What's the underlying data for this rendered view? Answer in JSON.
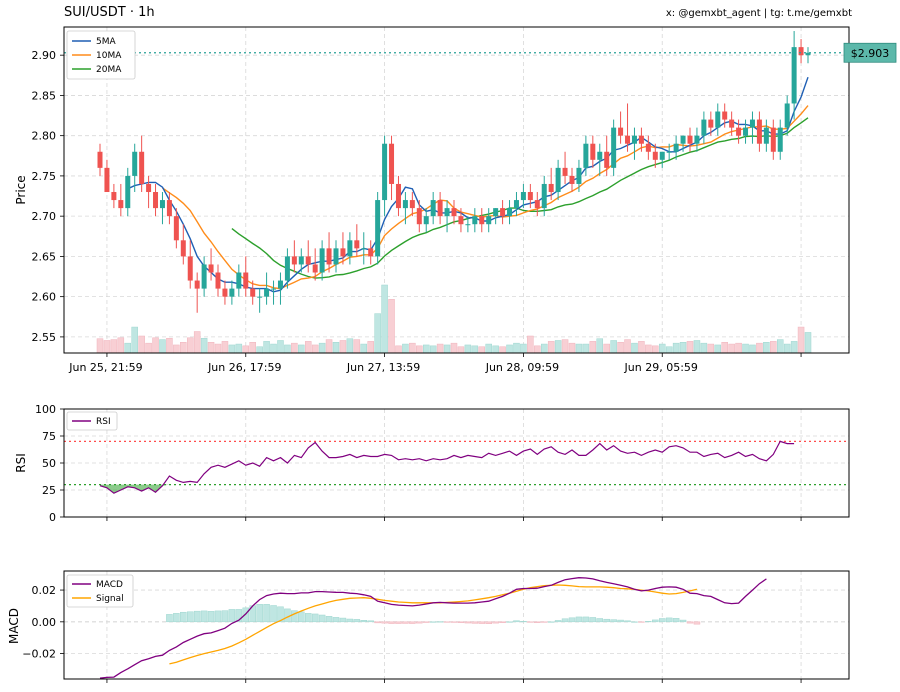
{
  "title": "SUI/USDT · 1h",
  "credit": "x: @gemxbt_agent | tg: t.me/gemxbt",
  "colors": {
    "up": "#26a69a",
    "down": "#ef5350",
    "vol_up": "#bfe6e2",
    "vol_down": "#f8cfd4",
    "ma5": "#1f5fb4",
    "ma10": "#ff8c1a",
    "ma20": "#2ca02c",
    "rsi": "#800080",
    "macd": "#800080",
    "signal": "#ffa500",
    "rsi_over": "#ff4d4d",
    "rsi_under": "#2ca02c",
    "price_line": "#2aa198",
    "price_tag_bg": "#5cb8aa"
  },
  "chart_data": [
    {
      "type": "candlestick",
      "ylabel": "Price",
      "ylim": [
        2.53,
        2.935
      ],
      "yticks": [
        2.55,
        2.6,
        2.65,
        2.7,
        2.75,
        2.8,
        2.85,
        2.9
      ],
      "ytick_labels": [
        "2.55",
        "2.60",
        "2.65",
        "2.70",
        "2.75",
        "2.80",
        "2.85",
        "2.90"
      ],
      "xtick_labels": [
        "Jun 25, 21:59",
        "Jun 26, 17:59",
        "Jun 27, 13:59",
        "Jun 28, 09:59",
        "Jun 29, 05:59",
        ""
      ],
      "xtick_index": [
        1,
        21,
        41,
        61,
        81,
        101
      ],
      "last_price": 2.903,
      "last_price_label": "$2.903",
      "legend": [
        "5MA",
        "10MA",
        "20MA"
      ],
      "ohlc": [
        [
          2.78,
          2.79,
          2.75,
          2.76
        ],
        [
          2.76,
          2.77,
          2.73,
          2.73
        ],
        [
          2.73,
          2.74,
          2.71,
          2.72
        ],
        [
          2.72,
          2.74,
          2.7,
          2.71
        ],
        [
          2.71,
          2.76,
          2.7,
          2.75
        ],
        [
          2.75,
          2.79,
          2.73,
          2.78
        ],
        [
          2.78,
          2.8,
          2.73,
          2.74
        ],
        [
          2.74,
          2.75,
          2.71,
          2.73
        ],
        [
          2.73,
          2.74,
          2.7,
          2.71
        ],
        [
          2.71,
          2.73,
          2.69,
          2.72
        ],
        [
          2.72,
          2.73,
          2.69,
          2.7
        ],
        [
          2.7,
          2.71,
          2.66,
          2.67
        ],
        [
          2.67,
          2.69,
          2.64,
          2.65
        ],
        [
          2.65,
          2.67,
          2.61,
          2.62
        ],
        [
          2.62,
          2.63,
          2.58,
          2.61
        ],
        [
          2.61,
          2.65,
          2.6,
          2.64
        ],
        [
          2.64,
          2.66,
          2.62,
          2.63
        ],
        [
          2.63,
          2.64,
          2.6,
          2.61
        ],
        [
          2.61,
          2.62,
          2.59,
          2.6
        ],
        [
          2.6,
          2.62,
          2.59,
          2.61
        ],
        [
          2.61,
          2.64,
          2.6,
          2.63
        ],
        [
          2.63,
          2.65,
          2.6,
          2.61
        ],
        [
          2.61,
          2.62,
          2.59,
          2.6
        ],
        [
          2.6,
          2.61,
          2.58,
          2.6
        ],
        [
          2.6,
          2.63,
          2.59,
          2.61
        ],
        [
          2.61,
          2.62,
          2.59,
          2.61
        ],
        [
          2.61,
          2.63,
          2.59,
          2.62
        ],
        [
          2.62,
          2.66,
          2.61,
          2.65
        ],
        [
          2.65,
          2.67,
          2.63,
          2.64
        ],
        [
          2.64,
          2.66,
          2.63,
          2.65
        ],
        [
          2.65,
          2.67,
          2.63,
          2.64
        ],
        [
          2.64,
          2.66,
          2.62,
          2.63
        ],
        [
          2.63,
          2.67,
          2.62,
          2.66
        ],
        [
          2.66,
          2.68,
          2.63,
          2.64
        ],
        [
          2.64,
          2.67,
          2.63,
          2.66
        ],
        [
          2.66,
          2.68,
          2.64,
          2.65
        ],
        [
          2.65,
          2.68,
          2.64,
          2.67
        ],
        [
          2.67,
          2.69,
          2.65,
          2.66
        ],
        [
          2.66,
          2.68,
          2.64,
          2.66
        ],
        [
          2.66,
          2.67,
          2.64,
          2.65
        ],
        [
          2.65,
          2.73,
          2.64,
          2.72
        ],
        [
          2.72,
          2.8,
          2.7,
          2.79
        ],
        [
          2.79,
          2.8,
          2.72,
          2.74
        ],
        [
          2.74,
          2.75,
          2.7,
          2.71
        ],
        [
          2.71,
          2.73,
          2.69,
          2.72
        ],
        [
          2.72,
          2.73,
          2.7,
          2.71
        ],
        [
          2.71,
          2.72,
          2.68,
          2.69
        ],
        [
          2.69,
          2.71,
          2.68,
          2.7
        ],
        [
          2.7,
          2.73,
          2.69,
          2.72
        ],
        [
          2.72,
          2.73,
          2.69,
          2.7
        ],
        [
          2.7,
          2.72,
          2.68,
          2.71
        ],
        [
          2.71,
          2.72,
          2.69,
          2.7
        ],
        [
          2.7,
          2.71,
          2.68,
          2.69
        ],
        [
          2.69,
          2.7,
          2.68,
          2.69
        ],
        [
          2.69,
          2.71,
          2.68,
          2.7
        ],
        [
          2.7,
          2.71,
          2.68,
          2.69
        ],
        [
          2.69,
          2.71,
          2.68,
          2.7
        ],
        [
          2.7,
          2.71,
          2.69,
          2.71
        ],
        [
          2.71,
          2.72,
          2.69,
          2.7
        ],
        [
          2.7,
          2.72,
          2.69,
          2.71
        ],
        [
          2.71,
          2.73,
          2.7,
          2.72
        ],
        [
          2.72,
          2.74,
          2.71,
          2.73
        ],
        [
          2.73,
          2.74,
          2.71,
          2.72
        ],
        [
          2.72,
          2.73,
          2.7,
          2.71
        ],
        [
          2.71,
          2.75,
          2.7,
          2.74
        ],
        [
          2.74,
          2.76,
          2.72,
          2.73
        ],
        [
          2.73,
          2.77,
          2.72,
          2.76
        ],
        [
          2.76,
          2.78,
          2.74,
          2.75
        ],
        [
          2.75,
          2.76,
          2.73,
          2.74
        ],
        [
          2.74,
          2.77,
          2.73,
          2.76
        ],
        [
          2.76,
          2.8,
          2.75,
          2.79
        ],
        [
          2.79,
          2.8,
          2.76,
          2.77
        ],
        [
          2.77,
          2.79,
          2.75,
          2.78
        ],
        [
          2.78,
          2.8,
          2.75,
          2.76
        ],
        [
          2.76,
          2.82,
          2.75,
          2.81
        ],
        [
          2.81,
          2.83,
          2.79,
          2.8
        ],
        [
          2.8,
          2.84,
          2.78,
          2.79
        ],
        [
          2.79,
          2.81,
          2.77,
          2.8
        ],
        [
          2.8,
          2.81,
          2.78,
          2.79
        ],
        [
          2.79,
          2.8,
          2.77,
          2.78
        ],
        [
          2.78,
          2.79,
          2.76,
          2.77
        ],
        [
          2.77,
          2.78,
          2.76,
          2.78
        ],
        [
          2.78,
          2.79,
          2.77,
          2.78
        ],
        [
          2.78,
          2.8,
          2.77,
          2.79
        ],
        [
          2.79,
          2.8,
          2.78,
          2.8
        ],
        [
          2.8,
          2.81,
          2.78,
          2.79
        ],
        [
          2.79,
          2.81,
          2.78,
          2.8
        ],
        [
          2.8,
          2.83,
          2.79,
          2.82
        ],
        [
          2.82,
          2.83,
          2.8,
          2.81
        ],
        [
          2.81,
          2.84,
          2.8,
          2.83
        ],
        [
          2.83,
          2.84,
          2.81,
          2.82
        ],
        [
          2.82,
          2.83,
          2.8,
          2.81
        ],
        [
          2.81,
          2.82,
          2.79,
          2.8
        ],
        [
          2.8,
          2.82,
          2.79,
          2.81
        ],
        [
          2.81,
          2.83,
          2.79,
          2.82
        ],
        [
          2.82,
          2.83,
          2.78,
          2.79
        ],
        [
          2.79,
          2.82,
          2.78,
          2.81
        ],
        [
          2.81,
          2.82,
          2.77,
          2.78
        ],
        [
          2.78,
          2.82,
          2.77,
          2.81
        ],
        [
          2.81,
          2.85,
          2.8,
          2.84
        ],
        [
          2.84,
          2.93,
          2.82,
          2.91
        ],
        [
          2.91,
          2.92,
          2.89,
          2.9
        ],
        [
          2.9,
          2.91,
          2.89,
          2.903
        ]
      ],
      "volume": [
        0.32,
        0.28,
        0.3,
        0.34,
        0.22,
        0.58,
        0.38,
        0.22,
        0.34,
        0.3,
        0.33,
        0.18,
        0.24,
        0.34,
        0.48,
        0.33,
        0.24,
        0.2,
        0.26,
        0.18,
        0.2,
        0.16,
        0.24,
        0.14,
        0.26,
        0.2,
        0.28,
        0.18,
        0.22,
        0.18,
        0.26,
        0.18,
        0.22,
        0.3,
        0.24,
        0.28,
        0.32,
        0.3,
        0.2,
        0.26,
        0.88,
        1.52,
        1.2,
        0.16,
        0.2,
        0.22,
        0.16,
        0.18,
        0.16,
        0.2,
        0.18,
        0.22,
        0.14,
        0.18,
        0.16,
        0.14,
        0.2,
        0.16,
        0.14,
        0.18,
        0.22,
        0.2,
        0.38,
        0.16,
        0.2,
        0.26,
        0.28,
        0.3,
        0.22,
        0.2,
        0.2,
        0.26,
        0.32,
        0.2,
        0.28,
        0.24,
        0.3,
        0.22,
        0.26,
        0.18,
        0.16,
        0.2,
        0.14,
        0.22,
        0.24,
        0.26,
        0.28,
        0.22,
        0.2,
        0.18,
        0.24,
        0.2,
        0.22,
        0.2,
        0.18,
        0.22,
        0.24,
        0.26,
        0.3,
        0.2,
        0.26,
        0.58,
        0.46
      ]
    },
    {
      "type": "line",
      "ylabel": "RSI",
      "ylim": [
        0,
        100
      ],
      "yticks": [
        0,
        25,
        50,
        75,
        100
      ],
      "overbought": 70,
      "oversold": 30,
      "legend": [
        "RSI"
      ],
      "values": [
        29,
        27,
        22,
        25,
        28,
        27,
        24,
        27,
        23,
        29,
        38,
        34,
        32,
        33,
        32,
        40,
        46,
        48,
        46,
        49,
        52,
        48,
        50,
        47,
        55,
        52,
        55,
        50,
        57,
        55,
        64,
        69,
        61,
        55,
        55,
        56,
        58,
        55,
        57,
        56,
        56,
        58,
        57,
        53,
        54,
        53,
        54,
        52,
        54,
        53,
        54,
        57,
        55,
        57,
        56,
        55,
        59,
        57,
        59,
        61,
        57,
        61,
        63,
        58,
        63,
        65,
        60,
        58,
        62,
        57,
        57,
        62,
        68,
        62,
        66,
        61,
        59,
        60,
        57,
        60,
        62,
        60,
        65,
        66,
        64,
        60,
        60,
        56,
        58,
        59,
        55,
        57,
        60,
        56,
        58,
        54,
        52,
        58,
        70,
        68,
        68
      ]
    },
    {
      "type": "line",
      "ylabel": "MACD",
      "ylim": [
        -0.036,
        0.032
      ],
      "yticks": [
        -0.02,
        0.0,
        0.02
      ],
      "ytick_labels": [
        "−0.02",
        "0.00",
        "0.02"
      ],
      "legend": [
        "MACD",
        "Signal"
      ],
      "macd": [
        -0.0355,
        -0.035,
        -0.0348,
        -0.032,
        -0.0296,
        -0.027,
        -0.0245,
        -0.0232,
        -0.0218,
        -0.021,
        -0.018,
        -0.0158,
        -0.013,
        -0.011,
        -0.009,
        -0.0075,
        -0.007,
        -0.0055,
        -0.004,
        -0.001,
        0.001,
        0.005,
        0.01,
        0.014,
        0.0165,
        0.0175,
        0.018,
        0.0178,
        0.0178,
        0.0182,
        0.0182,
        0.019,
        0.019,
        0.0188,
        0.0186,
        0.0185,
        0.018,
        0.0178,
        0.017,
        0.016,
        0.013,
        0.012,
        0.011,
        0.0105,
        0.0103,
        0.01,
        0.0105,
        0.0112,
        0.012,
        0.0122,
        0.012,
        0.0118,
        0.0118,
        0.0118,
        0.012,
        0.0125,
        0.013,
        0.0145,
        0.016,
        0.018,
        0.0205,
        0.021,
        0.021,
        0.0212,
        0.0222,
        0.023,
        0.0248,
        0.0265,
        0.0272,
        0.0278,
        0.0276,
        0.027,
        0.0258,
        0.0248,
        0.024,
        0.023,
        0.022,
        0.0205,
        0.0195,
        0.02,
        0.021,
        0.0218,
        0.022,
        0.0218,
        0.0205,
        0.018,
        0.0178,
        0.0165,
        0.016,
        0.014,
        0.012,
        0.0115,
        0.0118,
        0.016,
        0.02,
        0.024,
        0.027
      ],
      "signal_start": 10,
      "signal": [
        -0.0265,
        -0.0255,
        -0.024,
        -0.0225,
        -0.0212,
        -0.02,
        -0.019,
        -0.018,
        -0.0168,
        -0.0152,
        -0.0132,
        -0.011,
        -0.0085,
        -0.006,
        -0.0035,
        -0.0012,
        0.0008,
        0.003,
        0.005,
        0.0068,
        0.0085,
        0.01,
        0.0112,
        0.0125,
        0.0135,
        0.0142,
        0.0148,
        0.015,
        0.0152,
        0.0148,
        0.0142,
        0.0135,
        0.013,
        0.0125,
        0.0122,
        0.012,
        0.012,
        0.012,
        0.012,
        0.012,
        0.0122,
        0.0125,
        0.0128,
        0.0132,
        0.0138,
        0.0145,
        0.0152,
        0.016,
        0.017,
        0.018,
        0.0192,
        0.0205,
        0.0215,
        0.0222,
        0.0228,
        0.023,
        0.0232,
        0.023,
        0.0226,
        0.0222,
        0.022,
        0.022,
        0.022,
        0.0218,
        0.0215,
        0.021,
        0.0208,
        0.0205,
        0.02,
        0.0195,
        0.0188,
        0.018,
        0.0175,
        0.0178,
        0.0185,
        0.0195,
        0.0205
      ],
      "histogram_scale": 0.55
    }
  ]
}
